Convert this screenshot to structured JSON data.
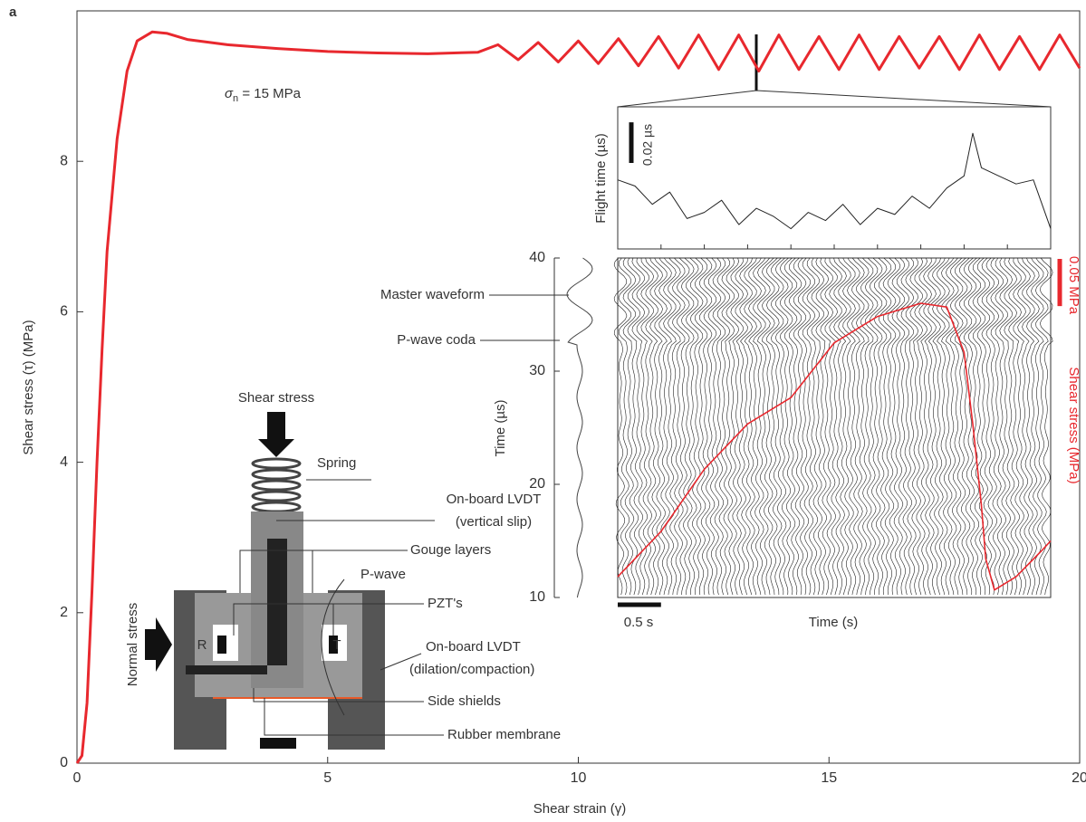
{
  "panel_label": "a",
  "annotation": {
    "symbol": "σ",
    "subscript": "n",
    "text": " = 15 MPa"
  },
  "chart_data": [
    {
      "type": "line",
      "x_label": "Shear strain (γ)",
      "y_label": "Shear stress (τ) (MPa)",
      "color": "#e8282e",
      "xlim": [
        0,
        20
      ],
      "ylim": [
        0,
        10
      ],
      "xticks": [
        0,
        5,
        10,
        15,
        20
      ],
      "yticks": [
        0,
        2,
        4,
        6,
        8
      ],
      "x": [
        0,
        0.1,
        0.2,
        0.3,
        0.4,
        0.5,
        0.6,
        0.8,
        1.0,
        1.2,
        1.5,
        1.8,
        2.2,
        3,
        4,
        5,
        6,
        7,
        8,
        8.4,
        8.8,
        9.2,
        9.6,
        10,
        10.4,
        10.8,
        11.2,
        11.6,
        12,
        12.4,
        12.8,
        13.2,
        13.6,
        14,
        14.4,
        14.8,
        15.2,
        15.6,
        16,
        16.4,
        16.8,
        17.2,
        17.6,
        18,
        18.4,
        18.8,
        19.2,
        19.6,
        20
      ],
      "values": [
        0,
        0.1,
        0.8,
        2.3,
        4,
        5.5,
        6.8,
        8.3,
        9.2,
        9.6,
        9.72,
        9.7,
        9.62,
        9.55,
        9.5,
        9.46,
        9.44,
        9.43,
        9.45,
        9.55,
        9.35,
        9.58,
        9.32,
        9.6,
        9.3,
        9.63,
        9.27,
        9.66,
        9.24,
        9.68,
        9.22,
        9.68,
        9.2,
        9.68,
        9.22,
        9.66,
        9.22,
        9.68,
        9.22,
        9.66,
        9.24,
        9.66,
        9.22,
        9.68,
        9.22,
        9.66,
        9.22,
        9.68,
        9.24
      ]
    },
    {
      "type": "line",
      "y_label": "Flight time (µs)",
      "color": "#222",
      "xlim": [
        0,
        5
      ],
      "ylim": [
        0,
        0.07
      ],
      "scale_bar": {
        "value": 0.02,
        "label": "0.02 µs"
      },
      "x": [
        0,
        0.2,
        0.4,
        0.6,
        0.8,
        1.0,
        1.2,
        1.4,
        1.6,
        1.8,
        2.0,
        2.2,
        2.4,
        2.6,
        2.8,
        3.0,
        3.2,
        3.4,
        3.6,
        3.8,
        4.0,
        4.1,
        4.2,
        4.4,
        4.6,
        4.8,
        5.0
      ],
      "values": [
        0.034,
        0.031,
        0.022,
        0.028,
        0.015,
        0.018,
        0.024,
        0.012,
        0.02,
        0.016,
        0.01,
        0.018,
        0.014,
        0.022,
        0.012,
        0.02,
        0.017,
        0.026,
        0.02,
        0.03,
        0.036,
        0.057,
        0.04,
        0.036,
        0.032,
        0.034,
        0.01
      ]
    },
    {
      "type": "line",
      "y_label": "Time (µs)",
      "x_label": "Time (s)",
      "y2_label": "Shear stress (MPa)",
      "color": "#e8282e",
      "ylim": [
        10,
        40
      ],
      "yticks": [
        10,
        20,
        30,
        40
      ],
      "xlim": [
        0,
        5
      ],
      "y2lim": [
        0,
        0.36
      ],
      "x_scale_bar": {
        "value": 0.5,
        "label": "0.5 s"
      },
      "y2_scale_bar": {
        "value": 0.05,
        "label": "0.05 MPa"
      },
      "annotations": [
        "Master waveform",
        "P-wave coda"
      ],
      "x": [
        0,
        0.5,
        1,
        1.5,
        2,
        2.5,
        3,
        3.5,
        3.8,
        4,
        4.1,
        4.2,
        4.25,
        4.35,
        4.6,
        4.9,
        5
      ],
      "values": [
        0.022,
        0.07,
        0.136,
        0.184,
        0.212,
        0.27,
        0.298,
        0.312,
        0.308,
        0.26,
        0.184,
        0.098,
        0.041,
        0.008,
        0.022,
        0.05,
        0.06
      ]
    }
  ],
  "diagram": {
    "labels": [
      "Shear stress",
      "Spring",
      "On-board LVDT",
      "(vertical slip)",
      "Gouge layers",
      "P-wave",
      "PZT's",
      "On-board LVDT",
      "(dilation/compaction)",
      "Side shields",
      "Rubber membrane",
      "Normal stress",
      "R",
      "T"
    ]
  }
}
